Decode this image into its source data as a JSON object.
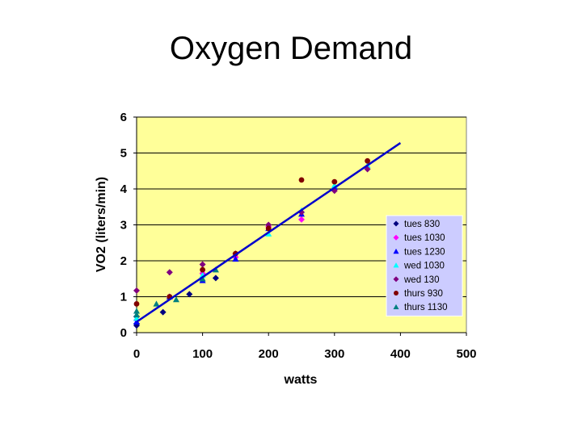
{
  "slide": {
    "title": "Oxygen Demand"
  },
  "chart_data": {
    "type": "scatter",
    "title": "Oxygen Demand",
    "xlabel": "watts",
    "ylabel": "VO2 (liters/min)",
    "xlim": [
      0,
      500
    ],
    "ylim": [
      0,
      6
    ],
    "xticks": [
      0,
      100,
      200,
      300,
      400,
      500
    ],
    "yticks": [
      0,
      1,
      2,
      3,
      4,
      5,
      6
    ],
    "grid": "horizontal",
    "plot_background": "#ffff99",
    "legend_background": "#ccccff",
    "legend_position": "right",
    "series": [
      {
        "name": "tues 830",
        "marker": "diamond",
        "color": "#000080",
        "points": [
          [
            0,
            0.2
          ],
          [
            0,
            0.25
          ],
          [
            0,
            0.45
          ],
          [
            40,
            0.57
          ],
          [
            80,
            1.07
          ],
          [
            120,
            1.52
          ]
        ]
      },
      {
        "name": "tues 1030",
        "marker": "diamond",
        "color": "#ff00ff",
        "points": [
          [
            0,
            0.35
          ],
          [
            50,
            1.0
          ],
          [
            100,
            1.65
          ],
          [
            150,
            2.1
          ],
          [
            200,
            2.95
          ],
          [
            250,
            3.15
          ]
        ]
      },
      {
        "name": "tues 1230",
        "marker": "triangle",
        "color": "#0000ff",
        "points": [
          [
            0,
            0.3
          ],
          [
            50,
            1.0
          ],
          [
            100,
            1.45
          ],
          [
            150,
            2.05
          ],
          [
            200,
            2.9
          ],
          [
            250,
            3.3
          ],
          [
            300,
            4.05
          ]
        ]
      },
      {
        "name": "wed 1030",
        "marker": "triangle",
        "color": "#00ffff",
        "points": [
          [
            0,
            0.4
          ],
          [
            100,
            1.6
          ],
          [
            200,
            2.75
          ],
          [
            250,
            3.4
          ],
          [
            300,
            4.1
          ],
          [
            350,
            4.65
          ]
        ]
      },
      {
        "name": "wed 130",
        "marker": "diamond",
        "color": "#800080",
        "points": [
          [
            0,
            1.17
          ],
          [
            50,
            1.68
          ],
          [
            100,
            1.9
          ],
          [
            150,
            2.2
          ],
          [
            200,
            3.0
          ],
          [
            250,
            3.35
          ],
          [
            300,
            3.95
          ],
          [
            350,
            4.55
          ]
        ]
      },
      {
        "name": "thurs 930",
        "marker": "circle",
        "color": "#800000",
        "points": [
          [
            0,
            0.8
          ],
          [
            50,
            1.0
          ],
          [
            100,
            1.75
          ],
          [
            150,
            2.2
          ],
          [
            200,
            2.9
          ],
          [
            250,
            4.25
          ],
          [
            300,
            4.2
          ],
          [
            350,
            4.78
          ]
        ]
      },
      {
        "name": "thurs 1130",
        "marker": "triangle",
        "color": "#008080",
        "points": [
          [
            0,
            0.6
          ],
          [
            0,
            0.5
          ],
          [
            30,
            0.8
          ],
          [
            60,
            0.92
          ],
          [
            100,
            1.5
          ],
          [
            120,
            1.75
          ]
        ]
      }
    ],
    "trendline": {
      "color": "#0000cc",
      "from": [
        0,
        0.3
      ],
      "to": [
        400,
        5.28
      ]
    }
  }
}
